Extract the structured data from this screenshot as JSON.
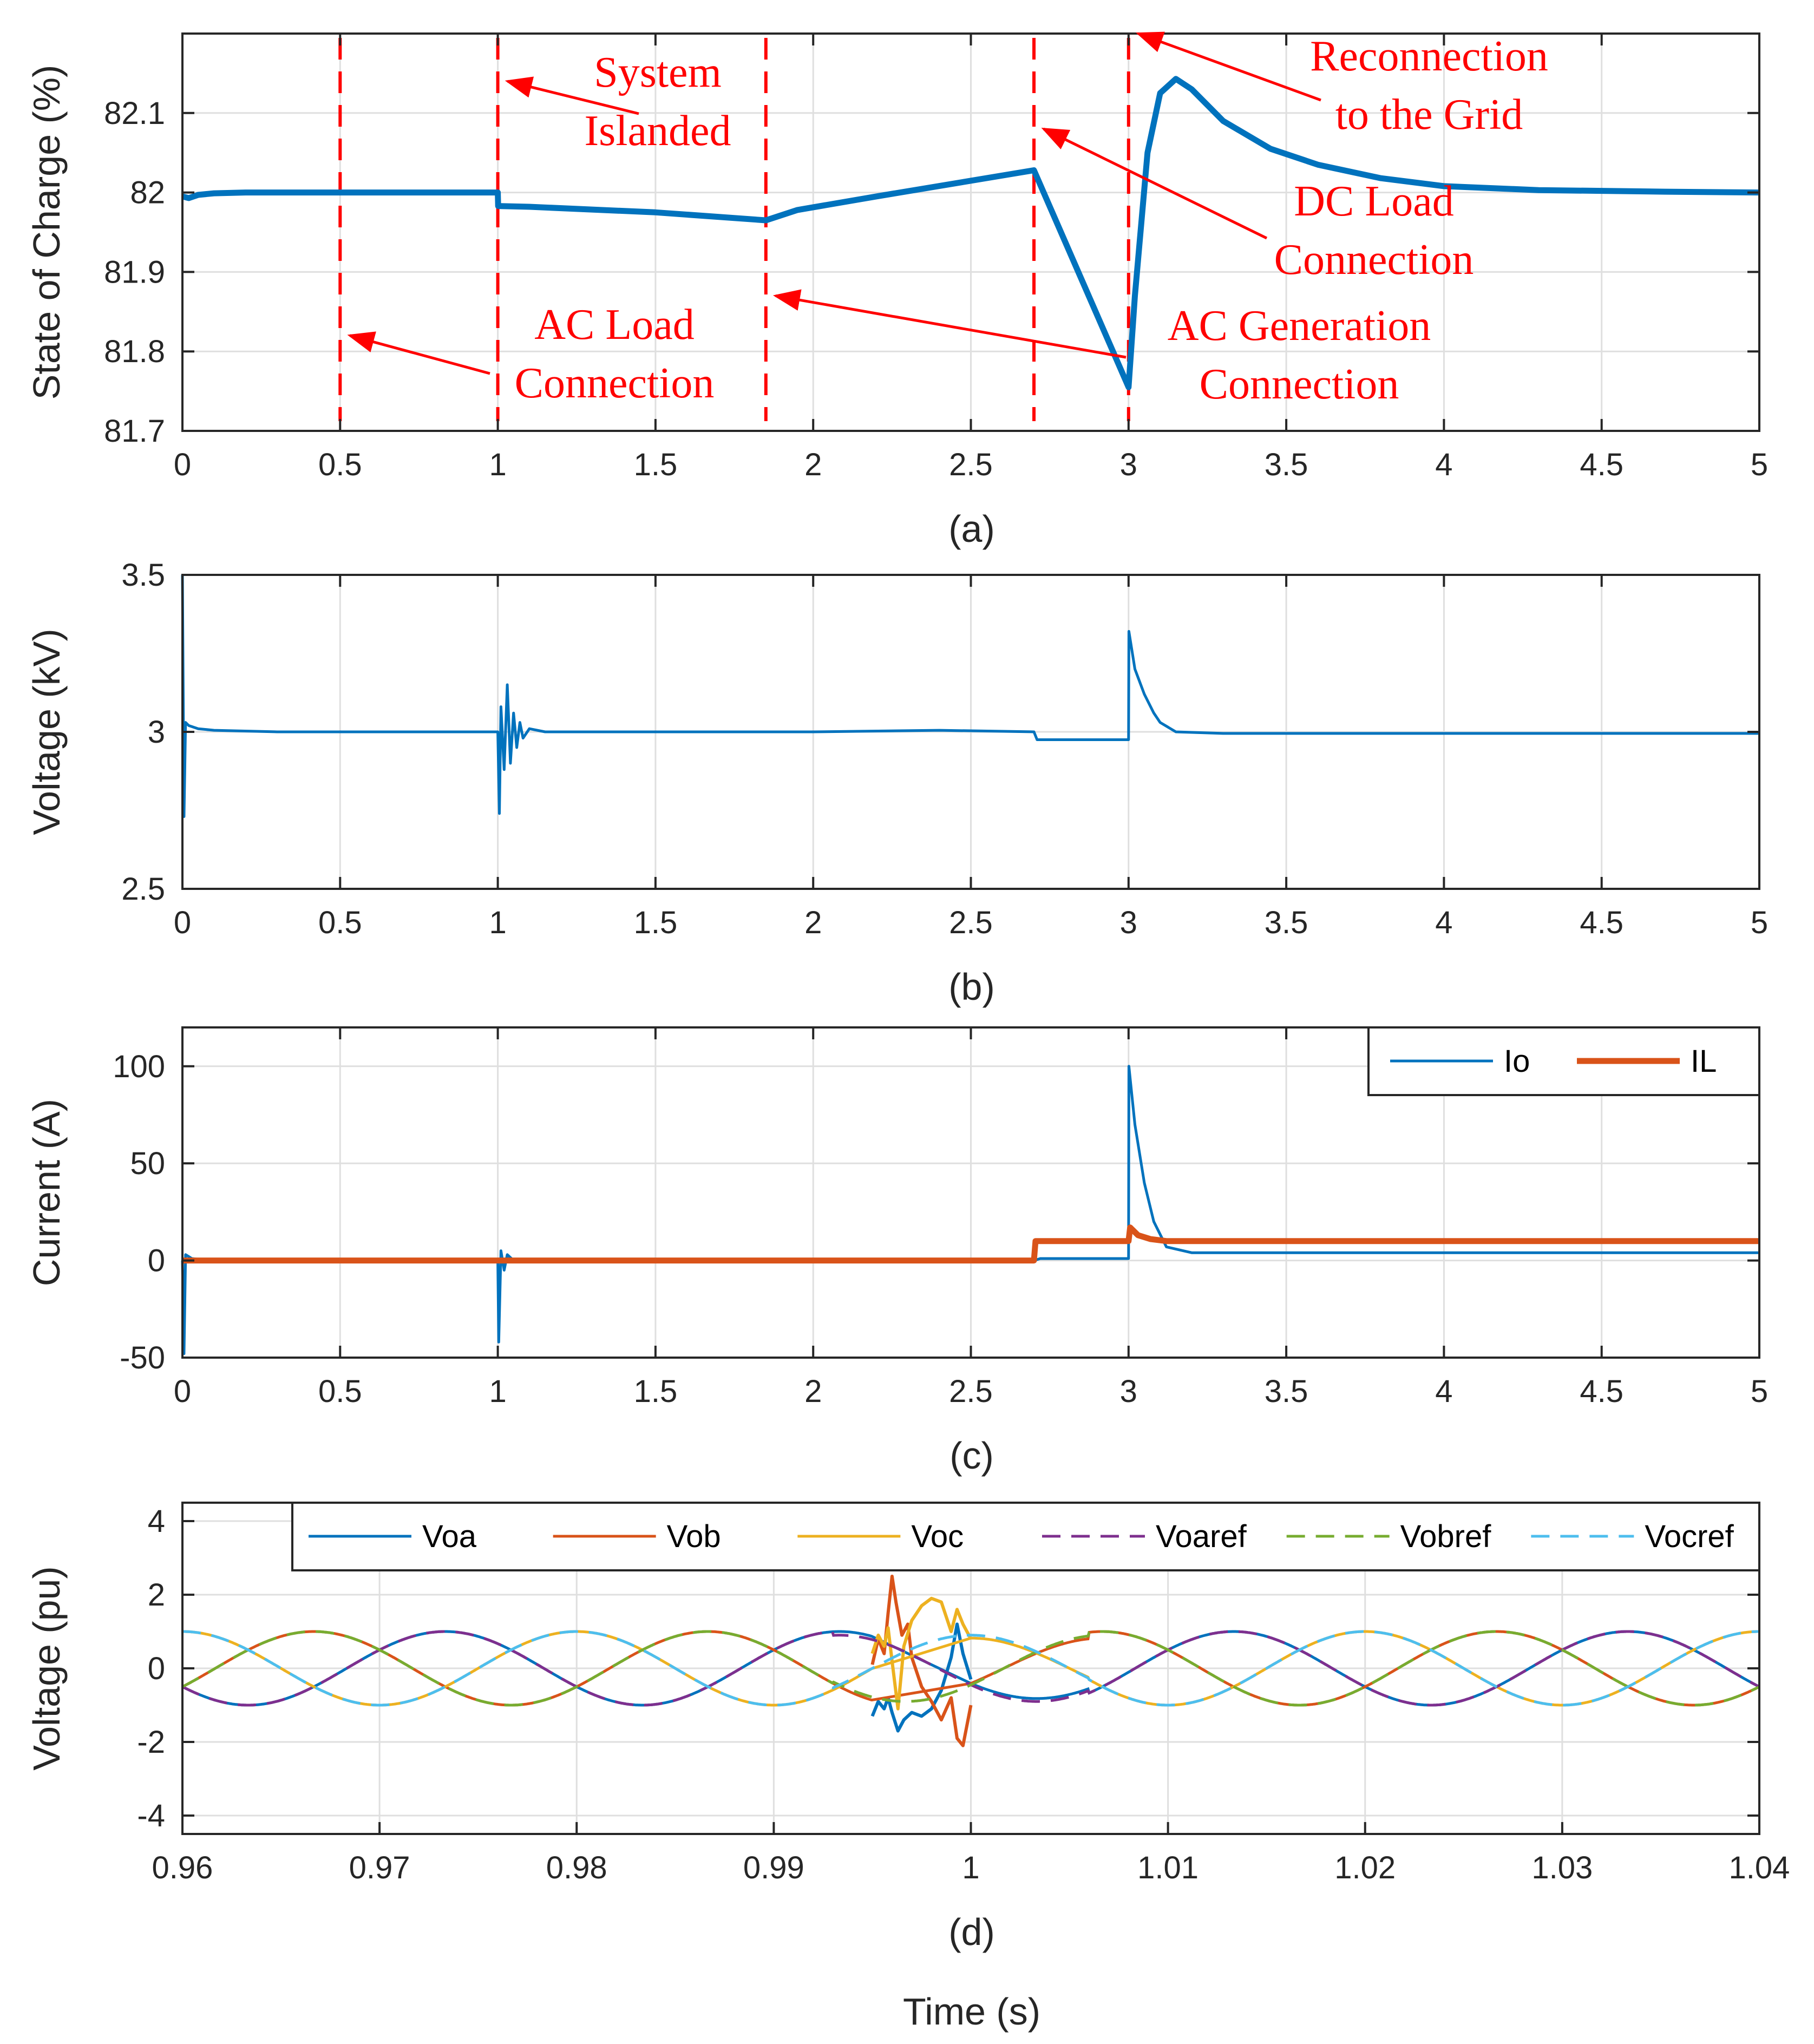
{
  "xlabel_bottom": "Time (s)",
  "colors": {
    "series_blue": "#0072bd",
    "series_orange": "#d95319",
    "series_yellow": "#edb120",
    "series_purple": "#7e2f8e",
    "series_green": "#77ac30",
    "series_cyan": "#4dbeee",
    "annotation": "#ff0000",
    "grid": "#dfdfdf",
    "axes": "#262626"
  },
  "chart_data": [
    {
      "id": "a",
      "type": "line",
      "caption": "(a)",
      "ylabel": "State of Charge (%)",
      "xlim": [
        0,
        5
      ],
      "ylim": [
        81.7,
        82.2
      ],
      "xticks": [
        0,
        0.5,
        1,
        1.5,
        2,
        2.5,
        3,
        3.5,
        4,
        4.5,
        5
      ],
      "yticks": [
        81.7,
        81.8,
        81.9,
        82,
        82.1
      ],
      "yticklabels": [
        "81.7",
        "81.8",
        "81.9",
        "82",
        "82.1"
      ],
      "grid": true,
      "series": [
        {
          "color": "#0072bd",
          "width": 11,
          "x": [
            0,
            0.02,
            0.05,
            0.1,
            0.2,
            0.5,
            0.8,
            1.0,
            1.001,
            1.1,
            1.5,
            1.85,
            1.95,
            2.2,
            2.7,
            3.0,
            3.02,
            3.06,
            3.1,
            3.15,
            3.2,
            3.3,
            3.45,
            3.6,
            3.8,
            4.0,
            4.3,
            4.7,
            5.0
          ],
          "y": [
            81.995,
            81.993,
            81.997,
            81.999,
            82.0,
            82.0,
            82.0,
            82.0,
            81.983,
            81.982,
            81.975,
            81.965,
            81.978,
            81.995,
            82.028,
            81.755,
            81.87,
            82.05,
            82.125,
            82.143,
            82.13,
            82.09,
            82.055,
            82.035,
            82.018,
            82.008,
            82.003,
            82.001,
            82.0
          ]
        }
      ],
      "markers": [
        0.5,
        1.0,
        1.85,
        2.7,
        3.0
      ],
      "annotations": [
        {
          "lines": [
            "System",
            "Islanded"
          ],
          "arrow_to": [
            1.0,
            82.14
          ]
        },
        {
          "lines": [
            "Reconnection",
            "to the Grid"
          ],
          "arrow_to": [
            3.0,
            82.2
          ]
        },
        {
          "lines": [
            "DC Load",
            "Connection"
          ],
          "arrow_to": [
            2.7,
            82.08
          ]
        },
        {
          "lines": [
            "AC Load",
            "Connection"
          ],
          "arrow_to": [
            0.5,
            81.82
          ]
        },
        {
          "lines": [
            "AC Generation",
            "Connection"
          ],
          "arrow_to": [
            1.85,
            81.87
          ]
        }
      ]
    },
    {
      "id": "b",
      "type": "line",
      "caption": "(b)",
      "ylabel": "Voltage (kV)",
      "xlim": [
        0,
        5
      ],
      "ylim": [
        2.5,
        3.5
      ],
      "xticks": [
        0,
        0.5,
        1,
        1.5,
        2,
        2.5,
        3,
        3.5,
        4,
        4.5,
        5
      ],
      "yticks": [
        2.5,
        3,
        3.5
      ],
      "yticklabels": [
        "2.5",
        "3",
        "3.5"
      ],
      "grid": true,
      "series": [
        {
          "color": "#0072bd",
          "width": 5,
          "x": [
            0,
            0.005,
            0.01,
            0.02,
            0.05,
            0.1,
            0.3,
            0.6,
            1.0,
            1.005,
            1.01,
            1.02,
            1.03,
            1.04,
            1.05,
            1.06,
            1.07,
            1.08,
            1.1,
            1.15,
            1.3,
            1.6,
            2.0,
            2.4,
            2.7,
            2.71,
            3.0,
            3.001,
            3.02,
            3.05,
            3.08,
            3.1,
            3.15,
            3.3,
            3.8,
            4.5,
            5.0
          ],
          "y": [
            3.5,
            2.73,
            3.03,
            3.02,
            3.01,
            3.005,
            3.0,
            3.0,
            3.0,
            2.74,
            3.08,
            2.88,
            3.15,
            2.9,
            3.06,
            2.95,
            3.03,
            2.98,
            3.01,
            3.0,
            3.0,
            3.0,
            3.0,
            3.005,
            3.0,
            2.975,
            2.975,
            3.32,
            3.2,
            3.12,
            3.06,
            3.03,
            3.0,
            2.995,
            2.995,
            2.995,
            2.995
          ]
        }
      ]
    },
    {
      "id": "c",
      "type": "line",
      "caption": "(c)",
      "ylabel": "Current (A)",
      "xlim": [
        0,
        5
      ],
      "ylim": [
        -50,
        120
      ],
      "xticks": [
        0,
        0.5,
        1,
        1.5,
        2,
        2.5,
        3,
        3.5,
        4,
        4.5,
        5
      ],
      "yticks": [
        -50,
        0,
        50,
        100
      ],
      "yticklabels": [
        "-50",
        "0",
        "50",
        "100"
      ],
      "grid": true,
      "legend": {
        "position": "top-right",
        "entries": [
          "Io",
          "IL"
        ]
      },
      "series": [
        {
          "name": "Io",
          "color": "#0072bd",
          "width": 5,
          "x": [
            0,
            0.005,
            0.01,
            0.03,
            0.06,
            0.1,
            0.5,
            1.0,
            1.003,
            1.01,
            1.02,
            1.03,
            1.05,
            1.1,
            2.0,
            2.7,
            2.72,
            3.0,
            3.001,
            3.02,
            3.05,
            3.08,
            3.12,
            3.2,
            3.5,
            4.0,
            5.0
          ],
          "y": [
            0,
            -48,
            3,
            1,
            0.5,
            0,
            0,
            0,
            -42,
            5,
            -5,
            3,
            0,
            0,
            0,
            0,
            1,
            1,
            100,
            70,
            40,
            20,
            7,
            4,
            4,
            4,
            4
          ]
        },
        {
          "name": "IL",
          "color": "#d95319",
          "width": 11,
          "x": [
            0,
            2.7,
            2.705,
            3.0,
            3.005,
            3.03,
            3.07,
            3.12,
            5.0
          ],
          "y": [
            0,
            0,
            10,
            10,
            17,
            13,
            11,
            10,
            10
          ]
        }
      ]
    },
    {
      "id": "d",
      "type": "line",
      "caption": "(d)",
      "ylabel": "Voltage (pu)",
      "xlim": [
        0.96,
        1.04
      ],
      "ylim": [
        -4.5,
        4.5
      ],
      "xticks": [
        0.96,
        0.97,
        0.98,
        0.99,
        1,
        1.01,
        1.02,
        1.03,
        1.04
      ],
      "yticks": [
        -4,
        -2,
        0,
        2,
        4
      ],
      "yticklabels": [
        "-4",
        "-2",
        "0",
        "2",
        "4"
      ],
      "grid": true,
      "legend": {
        "position": "top",
        "entries": [
          "Voa",
          "Vob",
          "Voc",
          "Voaref",
          "Vobref",
          "Vocref"
        ]
      },
      "sinusoid": {
        "frequency_hz": 50,
        "amplitude": 1,
        "phases_deg": {
          "a": 210,
          "b": 330,
          "c": 90
        }
      },
      "series": [
        {
          "name": "Voa",
          "color": "#0072bd",
          "dash": false,
          "phase": "a"
        },
        {
          "name": "Vob",
          "color": "#d95319",
          "dash": false,
          "phase": "b"
        },
        {
          "name": "Voc",
          "color": "#edb120",
          "dash": false,
          "phase": "c"
        },
        {
          "name": "Voaref",
          "color": "#7e2f8e",
          "dash": true,
          "phase": "a"
        },
        {
          "name": "Vobref",
          "color": "#77ac30",
          "dash": true,
          "phase": "b"
        },
        {
          "name": "Vocref",
          "color": "#4dbeee",
          "dash": true,
          "phase": "c"
        }
      ],
      "transient": {
        "interval": [
          0.995,
          1.0
        ],
        "Voa": {
          "x": [
            0.995,
            0.9953,
            0.9956,
            0.9958,
            0.996,
            0.9963,
            0.9966,
            0.997,
            0.9975,
            0.998,
            0.9985,
            0.999,
            0.9993,
            0.9996,
            1.0
          ],
          "y": [
            -1.3,
            -0.9,
            -1.1,
            -0.8,
            -1.2,
            -1.7,
            -1.4,
            -1.2,
            -1.3,
            -1.1,
            -0.6,
            0.3,
            1.2,
            0.4,
            -0.3
          ]
        },
        "Vob": {
          "x": [
            0.995,
            0.9953,
            0.9956,
            0.9958,
            0.996,
            0.9962,
            0.9965,
            0.9968,
            0.997,
            0.9975,
            0.998,
            0.9985,
            0.999,
            0.9993,
            0.9996,
            1.0
          ],
          "y": [
            0.1,
            0.8,
            0.4,
            1.5,
            2.5,
            1.8,
            0.9,
            1.2,
            0.3,
            -0.5,
            -0.9,
            -1.4,
            -0.8,
            -1.9,
            -2.1,
            -1.0
          ]
        },
        "Voc": {
          "x": [
            0.995,
            0.9953,
            0.9956,
            0.9958,
            0.996,
            0.9963,
            0.9966,
            0.997,
            0.9975,
            0.998,
            0.9985,
            0.999,
            0.9993,
            0.9996,
            1.0
          ],
          "y": [
            0.4,
            0.9,
            0.6,
            1.1,
            0.2,
            -1.1,
            0.6,
            1.3,
            1.7,
            1.9,
            1.8,
            1.0,
            1.6,
            1.2,
            0.8
          ]
        }
      },
      "recovery_end": 1.006
    }
  ]
}
